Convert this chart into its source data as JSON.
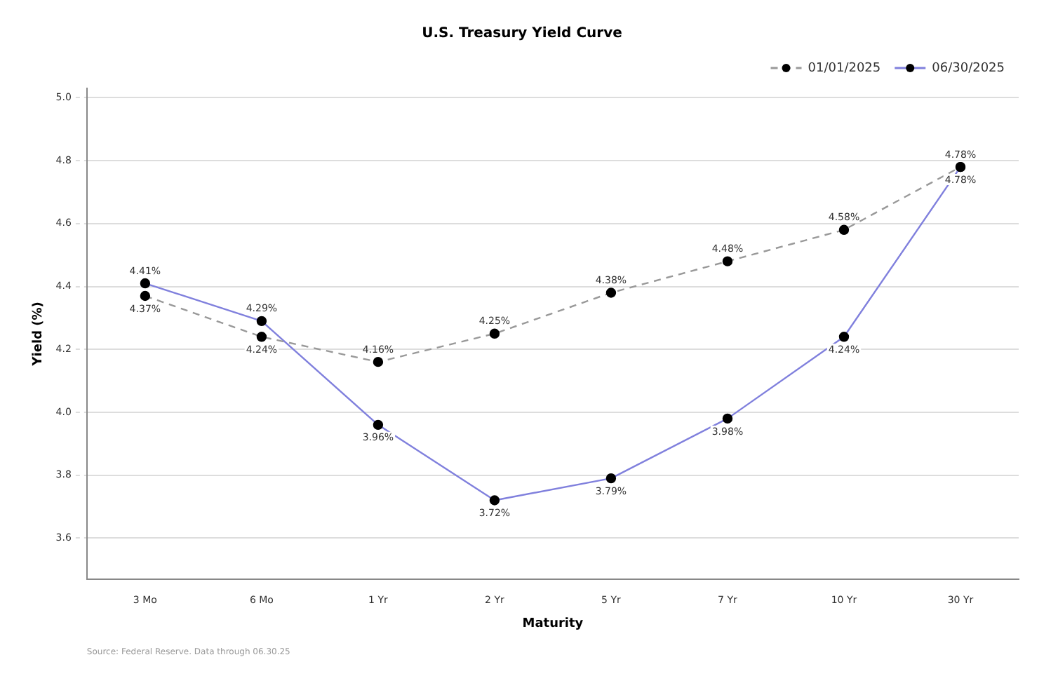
{
  "chart_data": {
    "type": "line",
    "title": "U.S. Treasury Yield Curve",
    "xlabel": "Maturity",
    "ylabel": "Yield (%)",
    "categories": [
      "3 Mo",
      "6 Mo",
      "1 Yr",
      "2 Yr",
      "5 Yr",
      "7 Yr",
      "10 Yr",
      "30 Yr"
    ],
    "series": [
      {
        "name": "01/01/2025",
        "color": "#999999",
        "line_style": "dashed",
        "values": [
          4.37,
          4.24,
          4.16,
          4.25,
          4.38,
          4.48,
          4.58,
          4.78
        ],
        "value_labels": [
          "4.37%",
          "4.24%",
          "4.16%",
          "4.25%",
          "4.38%",
          "4.48%",
          "4.58%",
          "4.78%"
        ]
      },
      {
        "name": "06/30/2025",
        "color": "#8080dd",
        "line_style": "solid",
        "values": [
          4.41,
          4.29,
          3.96,
          3.72,
          3.79,
          3.98,
          4.24,
          4.78
        ],
        "value_labels": [
          "4.41%",
          "4.29%",
          "3.96%",
          "3.72%",
          "3.79%",
          "3.98%",
          "4.24%",
          "4.78%"
        ]
      }
    ],
    "ylim": [
      3.47,
      5.03
    ],
    "yticks": [
      {
        "value": 3.6,
        "label": "3.6"
      },
      {
        "value": 3.8,
        "label": "3.8"
      },
      {
        "value": 4.0,
        "label": "4.0"
      },
      {
        "value": 4.2,
        "label": "4.2"
      },
      {
        "value": 4.4,
        "label": "4.4"
      },
      {
        "value": 4.6,
        "label": "4.6"
      },
      {
        "value": 4.8,
        "label": "4.8"
      },
      {
        "value": 5.0,
        "label": "5.0"
      }
    ],
    "grid": "y",
    "legend": "top right",
    "marker": "circle",
    "annotations": [
      "Source: Federal Reserve. Data through 06.30.25"
    ]
  }
}
